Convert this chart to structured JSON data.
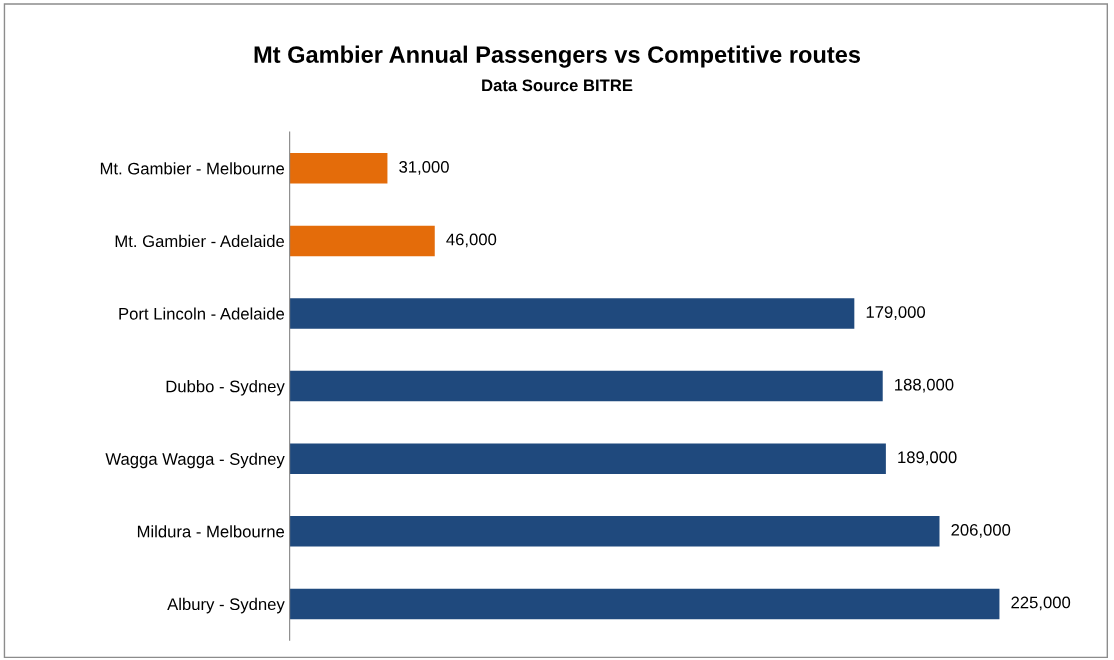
{
  "chart_data": {
    "type": "bar",
    "orientation": "horizontal",
    "title": "Mt Gambier Annual Passengers vs Competitive routes",
    "subtitle": "Data Source BITRE",
    "categories": [
      "Mt. Gambier - Melbourne",
      "Mt. Gambier - Adelaide",
      "Port Lincoln - Adelaide",
      "Dubbo - Sydney",
      "Wagga Wagga - Sydney",
      "Mildura - Melbourne",
      "Albury - Sydney"
    ],
    "values": [
      31000,
      46000,
      179000,
      188000,
      189000,
      206000,
      225000
    ],
    "colors": [
      "#e46c0a",
      "#e46c0a",
      "#1f497d",
      "#1f497d",
      "#1f497d",
      "#1f497d",
      "#1f497d"
    ],
    "value_labels": [
      "31,000",
      "46,000",
      "179,000",
      "188,000",
      "189,000",
      "206,000",
      "225,000"
    ],
    "tick_labels": "y",
    "grid": false,
    "legend": false
  }
}
